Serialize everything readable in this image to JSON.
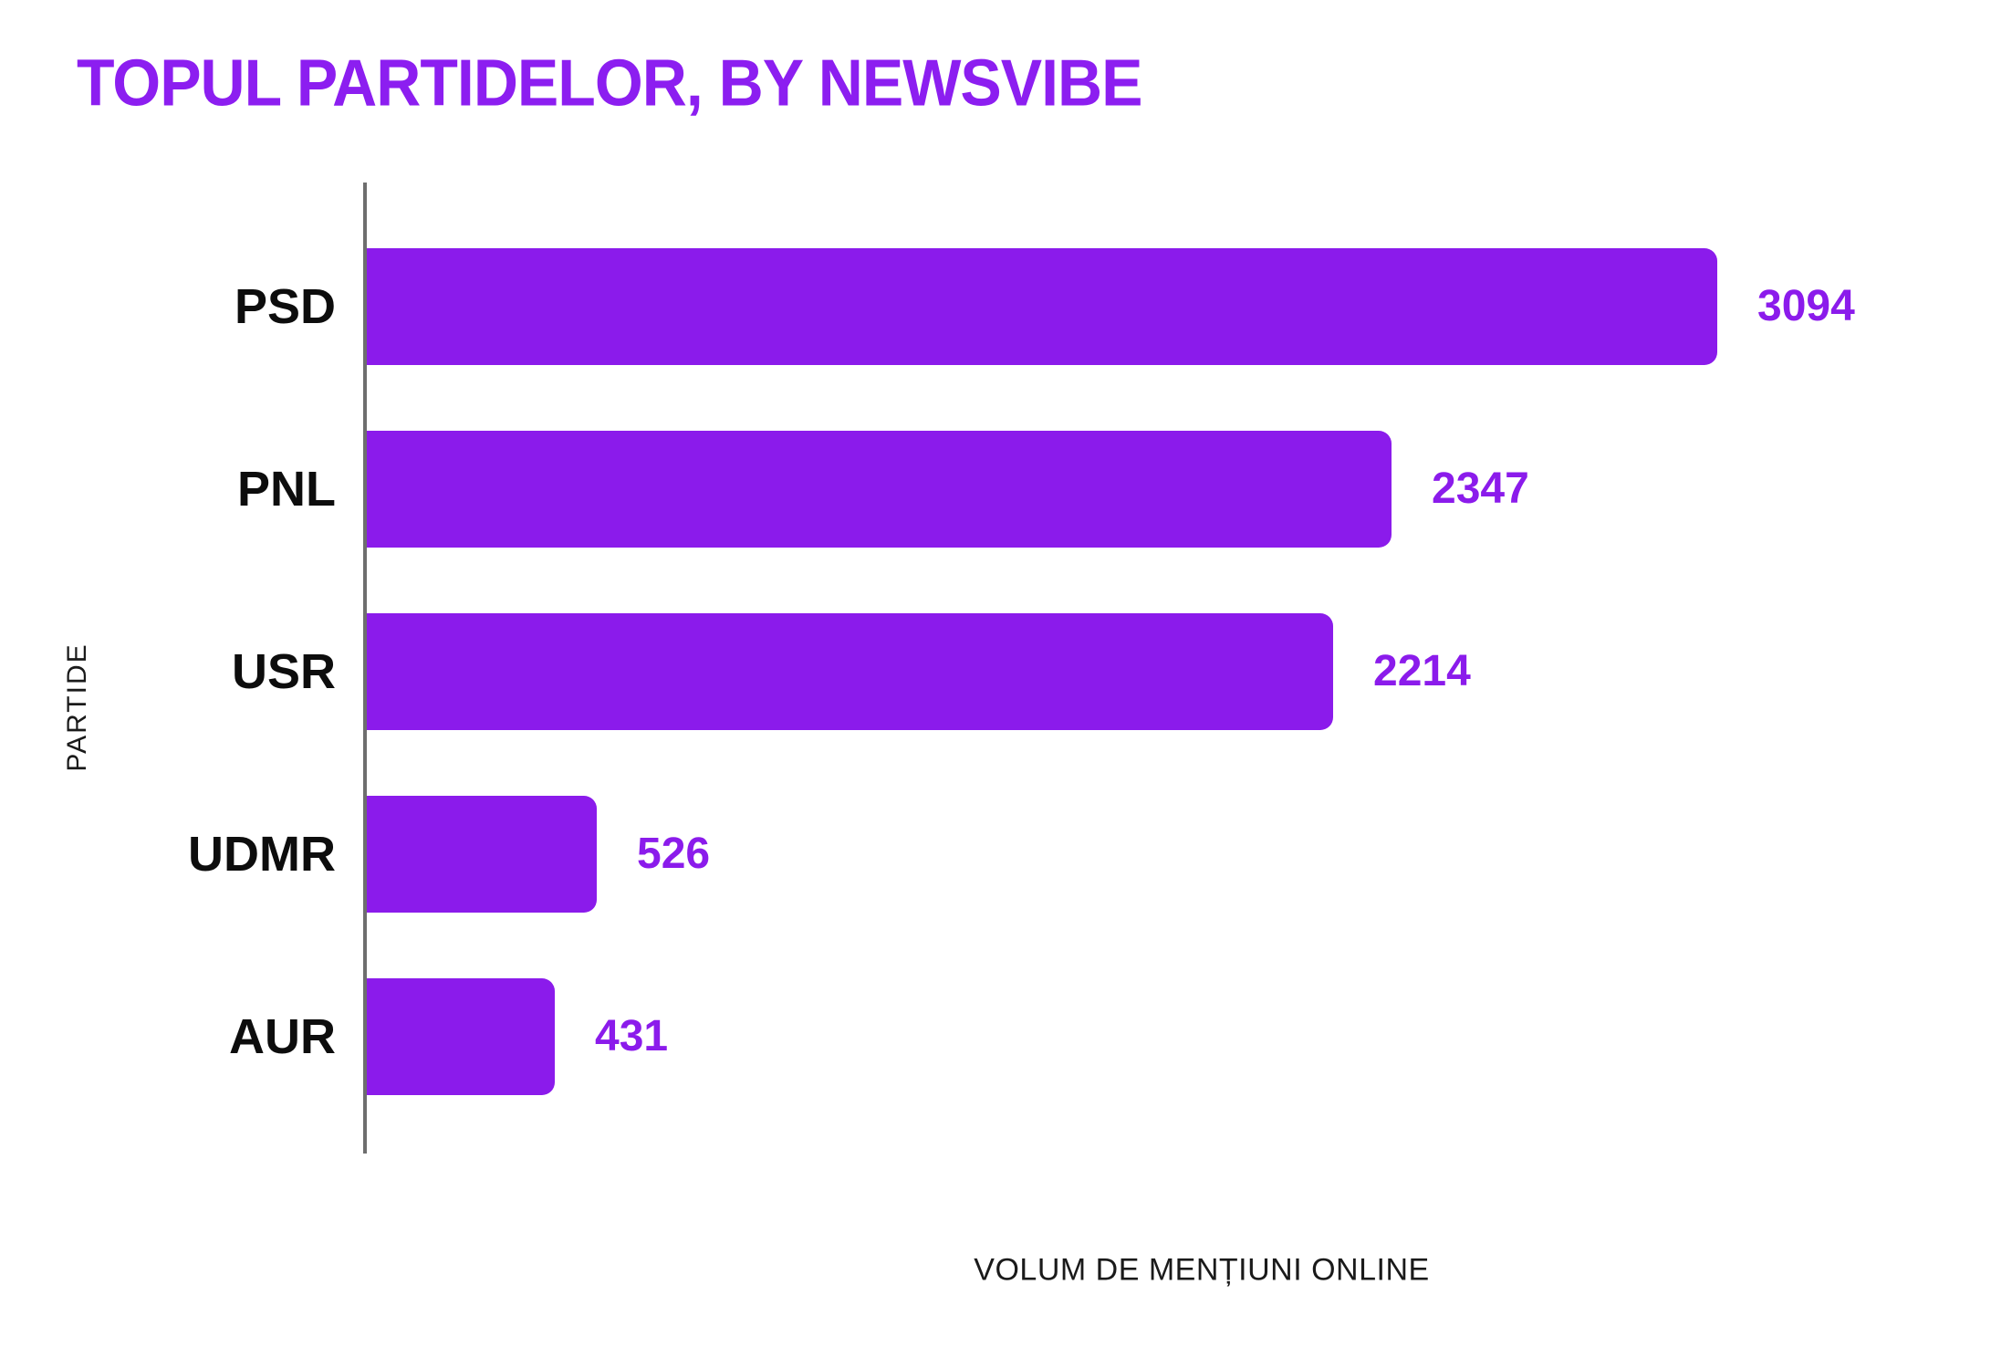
{
  "title": "TOPUL PARTIDELOR, BY NEWSVIBE",
  "colors": {
    "title_text": "#8C1EF0",
    "bar_fill": "#8B1BEB",
    "value_label_text": "#8B1BEB",
    "axis_line": "#6e6e6e",
    "category_label_text": "#0d0d0d",
    "axis_title_text": "#1a1a1a",
    "background": "#ffffff"
  },
  "chart_data": {
    "type": "bar",
    "orientation": "horizontal",
    "title": "TOPUL PARTIDELOR, BY NEWSVIBE",
    "categories": [
      "PSD",
      "PNL",
      "USR",
      "UDMR",
      "AUR"
    ],
    "values": [
      3094,
      2347,
      2214,
      526,
      431
    ],
    "xlabel": "VOLUM DE MENȚIUNI ONLINE",
    "ylabel": "PARTIDE",
    "xlim": [
      0,
      3300
    ],
    "grid": false,
    "legend": false,
    "value_labels_shown": true,
    "bars_sorted_descending": true
  }
}
